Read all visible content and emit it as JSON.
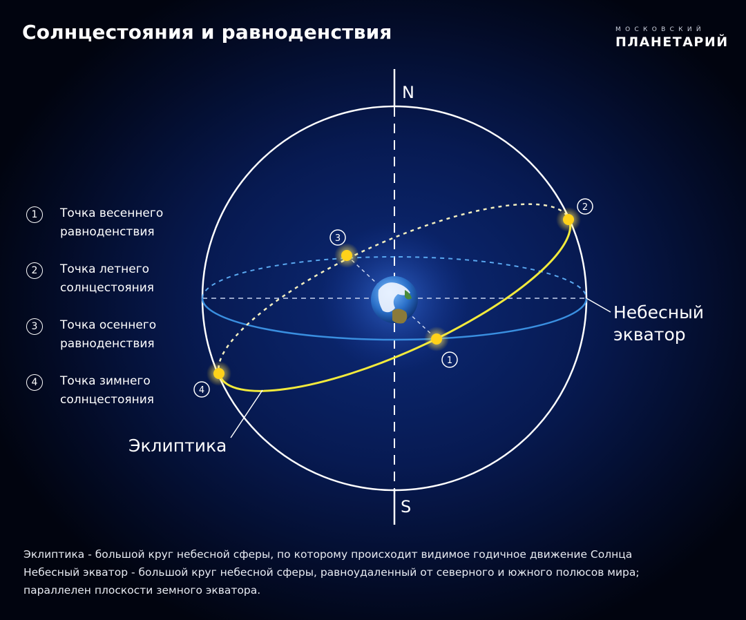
{
  "title": "Солнцестояния и равноденствия",
  "logo": {
    "line1": "МОСКОВСКИЙ",
    "line2": "ПЛАНЕТАРИЙ"
  },
  "axis": {
    "north": "N",
    "south": "S"
  },
  "legend": [
    {
      "num": "1",
      "line1": "Точка весеннего",
      "line2": "равноденствия"
    },
    {
      "num": "2",
      "line1": "Точка летнего",
      "line2": "солнцестояния"
    },
    {
      "num": "3",
      "line1": "Точка осеннего",
      "line2": "равноденствия"
    },
    {
      "num": "4",
      "line1": "Точка зимнего",
      "line2": "солнцестояния"
    }
  ],
  "labels": {
    "equator_line1": "Небесный",
    "equator_line2": "экватор",
    "ecliptic": "Эклиптика"
  },
  "footer": [
    "Эклиптика - большой круг небесной сферы, по которому происходит видимое годичное движение Солнца",
    "Небесный экватор - большой круг небесной сферы, равноудаленный от северного и южного полюсов мира;",
    "параллелен плоскости земного экватора."
  ],
  "colors": {
    "equator": "#3a8fe0",
    "ecliptic": "#f2ea3c",
    "sun": "#ffd21a",
    "sphere": "#ffffff"
  }
}
